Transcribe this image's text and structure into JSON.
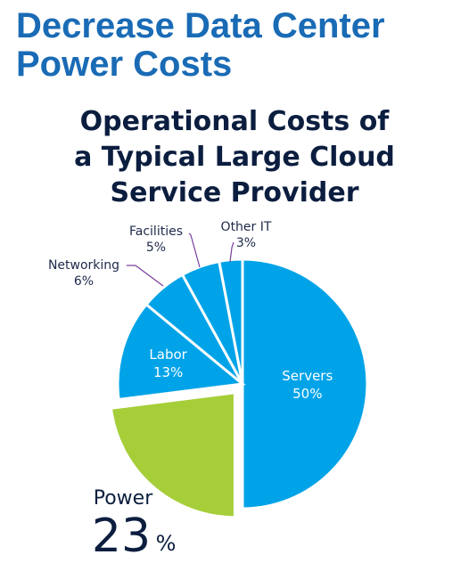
{
  "headline": "Decrease Data Center Power Costs",
  "chart_data": {
    "type": "pie",
    "title": [
      "Operational Costs of",
      "a Typical Large Cloud",
      "Service Provider"
    ],
    "slices": [
      {
        "name": "Servers",
        "value": 50,
        "value_label": "50%",
        "color": "#00a3e8",
        "label_inside": true
      },
      {
        "name": "Power",
        "value": 23,
        "value_label": "23",
        "unit_label": "%",
        "color": "#a6ce39",
        "exploded": true,
        "label_outside": "large"
      },
      {
        "name": "Labor",
        "value": 13,
        "value_label": "13%",
        "color": "#00a3e8",
        "label_inside": true
      },
      {
        "name": "Networking",
        "value": 6,
        "value_label": "6%",
        "color": "#00a3e8",
        "label_outside": "leader"
      },
      {
        "name": "Facilities",
        "value": 5,
        "value_label": "5%",
        "color": "#00a3e8",
        "label_outside": "leader"
      },
      {
        "name": "Other IT",
        "value": 3,
        "value_label": "3%",
        "color": "#00a3e8",
        "label_outside": "leader"
      }
    ],
    "leader_color": "#7a3e9d"
  }
}
